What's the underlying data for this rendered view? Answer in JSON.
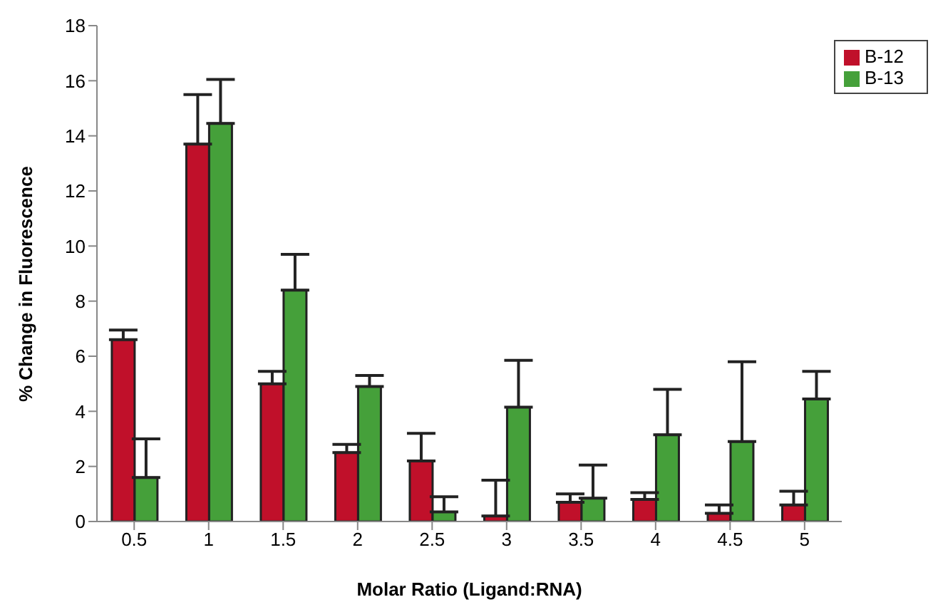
{
  "chart_data": {
    "type": "bar",
    "xlabel": "Molar Ratio (Ligand:RNA)",
    "ylabel": "% Change in Fluorescence",
    "categories": [
      "0.5",
      "1",
      "1.5",
      "2",
      "2.5",
      "3",
      "3.5",
      "4",
      "4.5",
      "5"
    ],
    "series": [
      {
        "name": "B-12",
        "color": "#c0102a",
        "values": [
          6.6,
          13.7,
          5.0,
          2.5,
          2.2,
          0.2,
          0.7,
          0.8,
          0.3,
          0.6
        ],
        "errors": [
          [
            6.6,
            6.95
          ],
          [
            13.7,
            15.5
          ],
          [
            5.0,
            5.45
          ],
          [
            2.5,
            2.8
          ],
          [
            2.2,
            3.2
          ],
          [
            0.2,
            1.5
          ],
          [
            0.7,
            1.0
          ],
          [
            0.8,
            1.05
          ],
          [
            0.3,
            0.6
          ],
          [
            0.6,
            1.1
          ]
        ]
      },
      {
        "name": "B-13",
        "color": "#45a03a",
        "values": [
          1.6,
          14.45,
          8.4,
          4.9,
          0.35,
          4.15,
          0.85,
          3.15,
          2.9,
          4.45
        ],
        "errors": [
          [
            1.6,
            3.0
          ],
          [
            14.45,
            16.05
          ],
          [
            8.4,
            9.7
          ],
          [
            4.9,
            5.3
          ],
          [
            0.35,
            0.9
          ],
          [
            4.15,
            5.85
          ],
          [
            0.85,
            2.05
          ],
          [
            3.15,
            4.8
          ],
          [
            2.9,
            5.8
          ],
          [
            4.45,
            5.45
          ]
        ]
      }
    ],
    "ylim": [
      0,
      18
    ],
    "yticks": [
      0,
      2,
      4,
      6,
      8,
      10,
      12,
      14,
      16,
      18
    ],
    "grid": false,
    "legend": "top right"
  }
}
